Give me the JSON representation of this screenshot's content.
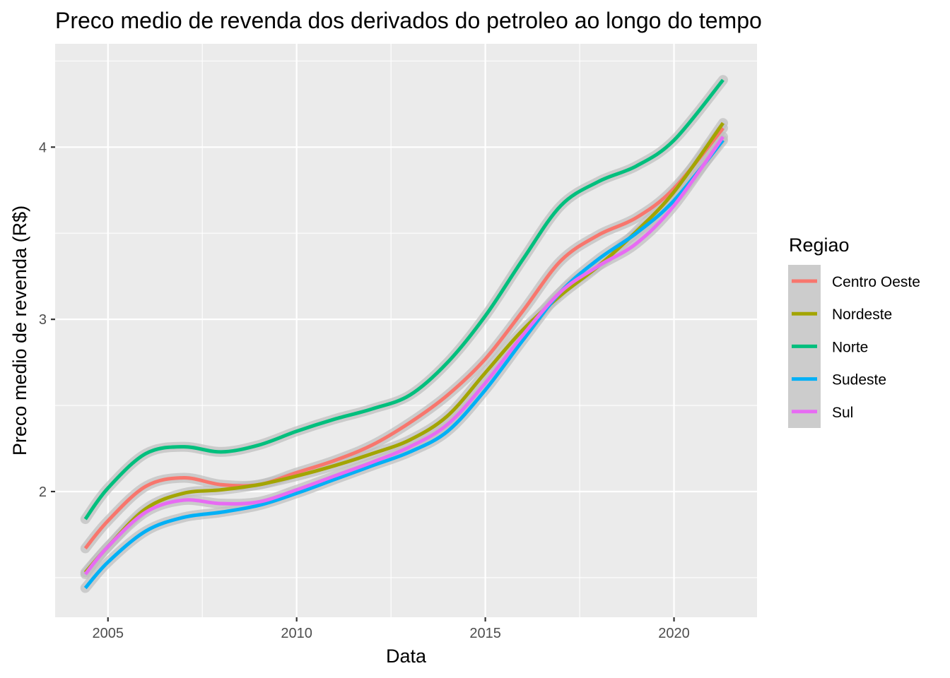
{
  "chart_data": {
    "type": "line",
    "title": "Preco medio de revenda dos derivados do petroleo ao longo do tempo",
    "xlabel": "Data",
    "ylabel": "Preco medio de revenda (R$)",
    "xlim": [
      2003.6,
      2022.2
    ],
    "ylim": [
      1.27,
      4.6
    ],
    "x_ticks": [
      2005,
      2010,
      2015,
      2020
    ],
    "x_minor_ticks": [
      2007.5,
      2012.5,
      2017.5
    ],
    "y_ticks": [
      2,
      3,
      4
    ],
    "y_minor_ticks": [
      1.5,
      2.5,
      3.5,
      4.5
    ],
    "grid": true,
    "smoothed_with_confidence_band": true,
    "legend": {
      "title": "Regiao",
      "placement": "right"
    },
    "x": [
      2004.4,
      2005.0,
      2006.0,
      2007.0,
      2008.0,
      2009.0,
      2010.0,
      2011.0,
      2012.0,
      2013.0,
      2014.0,
      2015.0,
      2016.0,
      2017.0,
      2018.0,
      2019.0,
      2020.0,
      2021.3
    ],
    "series": [
      {
        "name": "Centro Oeste",
        "color": "#F8766D",
        "values": [
          1.67,
          1.83,
          2.03,
          2.08,
          2.04,
          2.04,
          2.11,
          2.18,
          2.27,
          2.4,
          2.56,
          2.77,
          3.05,
          3.34,
          3.49,
          3.59,
          3.76,
          4.11
        ]
      },
      {
        "name": "Nordeste",
        "color": "#A3A500",
        "values": [
          1.53,
          1.68,
          1.9,
          1.99,
          2.01,
          2.04,
          2.09,
          2.15,
          2.22,
          2.3,
          2.44,
          2.69,
          2.94,
          3.14,
          3.31,
          3.51,
          3.74,
          4.14
        ]
      },
      {
        "name": "Norte",
        "color": "#00BF7D",
        "values": [
          1.84,
          2.02,
          2.22,
          2.26,
          2.23,
          2.27,
          2.35,
          2.42,
          2.48,
          2.56,
          2.75,
          3.02,
          3.35,
          3.66,
          3.8,
          3.89,
          4.04,
          4.39
        ]
      },
      {
        "name": "Sudeste",
        "color": "#00B0F6",
        "values": [
          1.44,
          1.59,
          1.77,
          1.85,
          1.88,
          1.92,
          1.99,
          2.07,
          2.15,
          2.23,
          2.35,
          2.59,
          2.88,
          3.16,
          3.35,
          3.5,
          3.69,
          4.04
        ]
      },
      {
        "name": "Sul",
        "color": "#E76BF3",
        "values": [
          1.52,
          1.68,
          1.88,
          1.95,
          1.93,
          1.94,
          2.01,
          2.09,
          2.17,
          2.26,
          2.39,
          2.63,
          2.91,
          3.16,
          3.31,
          3.44,
          3.66,
          4.06
        ]
      }
    ]
  },
  "colors": {
    "panel_background": "#EBEBEB",
    "grid_major": "#FFFFFF",
    "confidence_band": "#BDBDBD",
    "legend_key_background": "#CCCCCC"
  }
}
